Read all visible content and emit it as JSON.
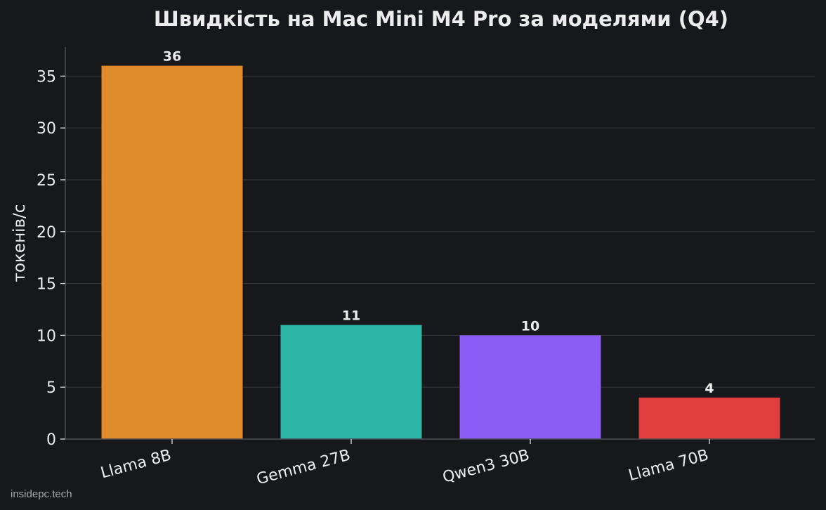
{
  "chart_data": {
    "type": "bar",
    "title": "Швидкість на Mac Mini M4 Pro за моделями (Q4)",
    "xlabel": "",
    "ylabel": "токенів/с",
    "categories": [
      "Llama 8B",
      "Gemma 27B",
      "Qwen3 30B",
      "Llama 70B"
    ],
    "values": [
      36,
      11,
      10,
      4
    ],
    "data_labels": [
      "36",
      "11",
      "10",
      "4"
    ],
    "colors": [
      "#e08a2c",
      "#2ab5a6",
      "#8b5cf6",
      "#e03e3e"
    ],
    "ylim": [
      0,
      37.8
    ],
    "yticks": [
      0,
      5,
      10,
      15,
      20,
      25,
      30,
      35
    ],
    "grid": "horizontal",
    "legend": "none"
  },
  "watermark": "insidepc.tech",
  "theme": {
    "background": "#17181c",
    "text": "#ececec",
    "grid": "#2e3035"
  }
}
